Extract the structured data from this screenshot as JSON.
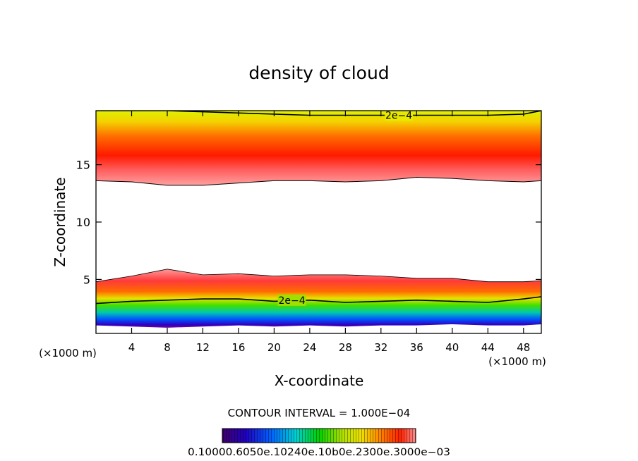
{
  "chart_data": {
    "type": "heatmap",
    "title": "density of cloud",
    "xlabel": "X-coordinate",
    "ylabel": "Z-coordinate",
    "x_unit_left": "(×1000 m)",
    "x_unit_right": "(×1000 m)",
    "xlim": [
      0,
      50
    ],
    "ylim": [
      0.3,
      19.7
    ],
    "x_ticks": [
      4,
      8,
      12,
      16,
      20,
      24,
      28,
      32,
      36,
      40,
      44,
      48
    ],
    "x_tick_labels": [
      "4",
      "8",
      "12",
      "16",
      "20",
      "24",
      "28",
      "32",
      "36",
      "40",
      "44",
      "48"
    ],
    "y_ticks": [
      5,
      10,
      15
    ],
    "y_tick_labels": [
      "5",
      "10",
      "15"
    ],
    "contour_interval_label": "CONTOUR INTERVAL = 1.000E−04",
    "contour_labels": [
      {
        "text": "2e−4",
        "x": 34,
        "z": 19.3
      },
      {
        "text": "2e−4",
        "x": 22,
        "z": 3.2
      }
    ],
    "colorbar_labels": "0.10000.6050e.10240e.10b0e.2300e.3000e−03",
    "upper_layer": {
      "x": [
        0,
        4,
        8,
        12,
        16,
        20,
        24,
        28,
        32,
        36,
        40,
        44,
        48,
        50
      ],
      "bottom_z": [
        13.6,
        13.5,
        13.2,
        13.2,
        13.4,
        13.6,
        13.6,
        13.5,
        13.6,
        13.9,
        13.8,
        13.6,
        13.5,
        13.6
      ],
      "contour_2e4_z": [
        19.7,
        19.7,
        19.7,
        19.6,
        19.5,
        19.4,
        19.3,
        19.3,
        19.3,
        19.3,
        19.3,
        19.3,
        19.4,
        19.7
      ],
      "core_z": 15.6,
      "top_z": 19.7
    },
    "lower_layer": {
      "x": [
        0,
        4,
        8,
        12,
        16,
        20,
        24,
        28,
        32,
        36,
        40,
        44,
        48,
        50
      ],
      "top_z": [
        4.8,
        5.3,
        5.9,
        5.4,
        5.5,
        5.3,
        5.4,
        5.4,
        5.3,
        5.1,
        5.1,
        4.8,
        4.8,
        4.9
      ],
      "contour_2e4_z": [
        2.9,
        3.1,
        3.2,
        3.3,
        3.3,
        3.1,
        3.2,
        3.0,
        3.1,
        3.2,
        3.1,
        3.0,
        3.3,
        3.5
      ],
      "bottom_z": [
        1.0,
        0.9,
        0.8,
        0.9,
        1.0,
        0.9,
        1.0,
        0.9,
        1.0,
        1.0,
        1.1,
        1.0,
        1.0,
        1.1
      ]
    },
    "colormap": [
      "#3a006a",
      "#2000a0",
      "#0040ff",
      "#00c8c8",
      "#00d000",
      "#80e000",
      "#e0e000",
      "#ff9000",
      "#ff2000",
      "#ff8080"
    ]
  }
}
